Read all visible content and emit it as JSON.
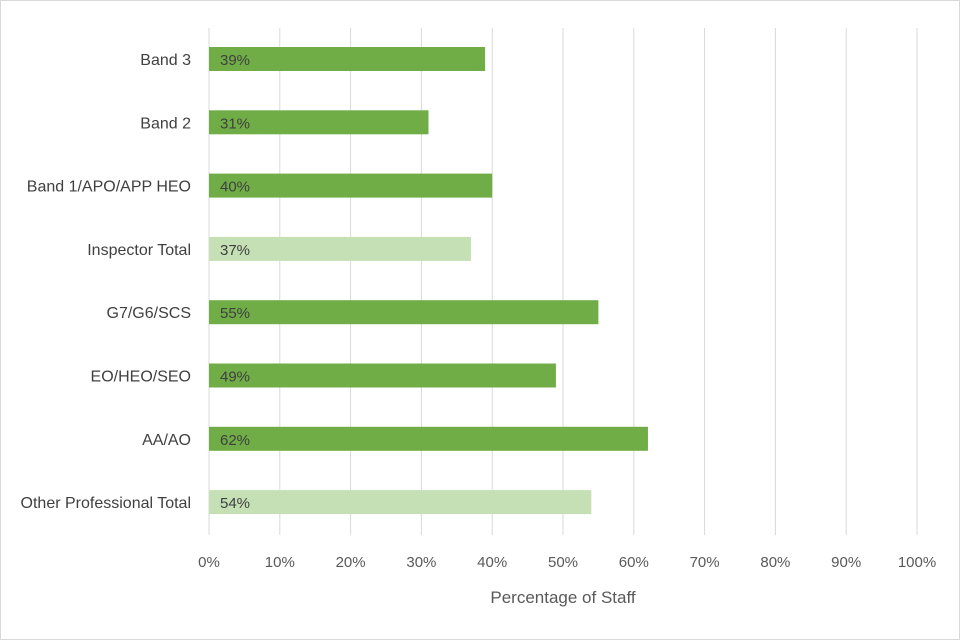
{
  "chart_data": {
    "type": "bar",
    "orientation": "horizontal",
    "categories": [
      "Band 3",
      "Band 2",
      "Band 1/APO/APP HEO",
      "Inspector Total",
      "G7/G6/SCS",
      "EO/HEO/SEO",
      "AA/AO",
      "Other Professional Total"
    ],
    "values": [
      39,
      31,
      40,
      37,
      55,
      49,
      62,
      54
    ],
    "data_labels": [
      "39%",
      "31%",
      "40%",
      "37%",
      "55%",
      "49%",
      "62%",
      "54%"
    ],
    "bar_colors": [
      "#70ad47",
      "#70ad47",
      "#70ad47",
      "#c5e0b4",
      "#70ad47",
      "#70ad47",
      "#70ad47",
      "#c5e0b4"
    ],
    "xlabel": "Percentage of Staff",
    "ylabel": "",
    "title": "",
    "xlim": [
      0,
      100
    ],
    "x_ticks": [
      "0%",
      "10%",
      "20%",
      "30%",
      "40%",
      "50%",
      "60%",
      "70%",
      "80%",
      "90%",
      "100%"
    ],
    "grid": "vertical",
    "legend": "none"
  }
}
